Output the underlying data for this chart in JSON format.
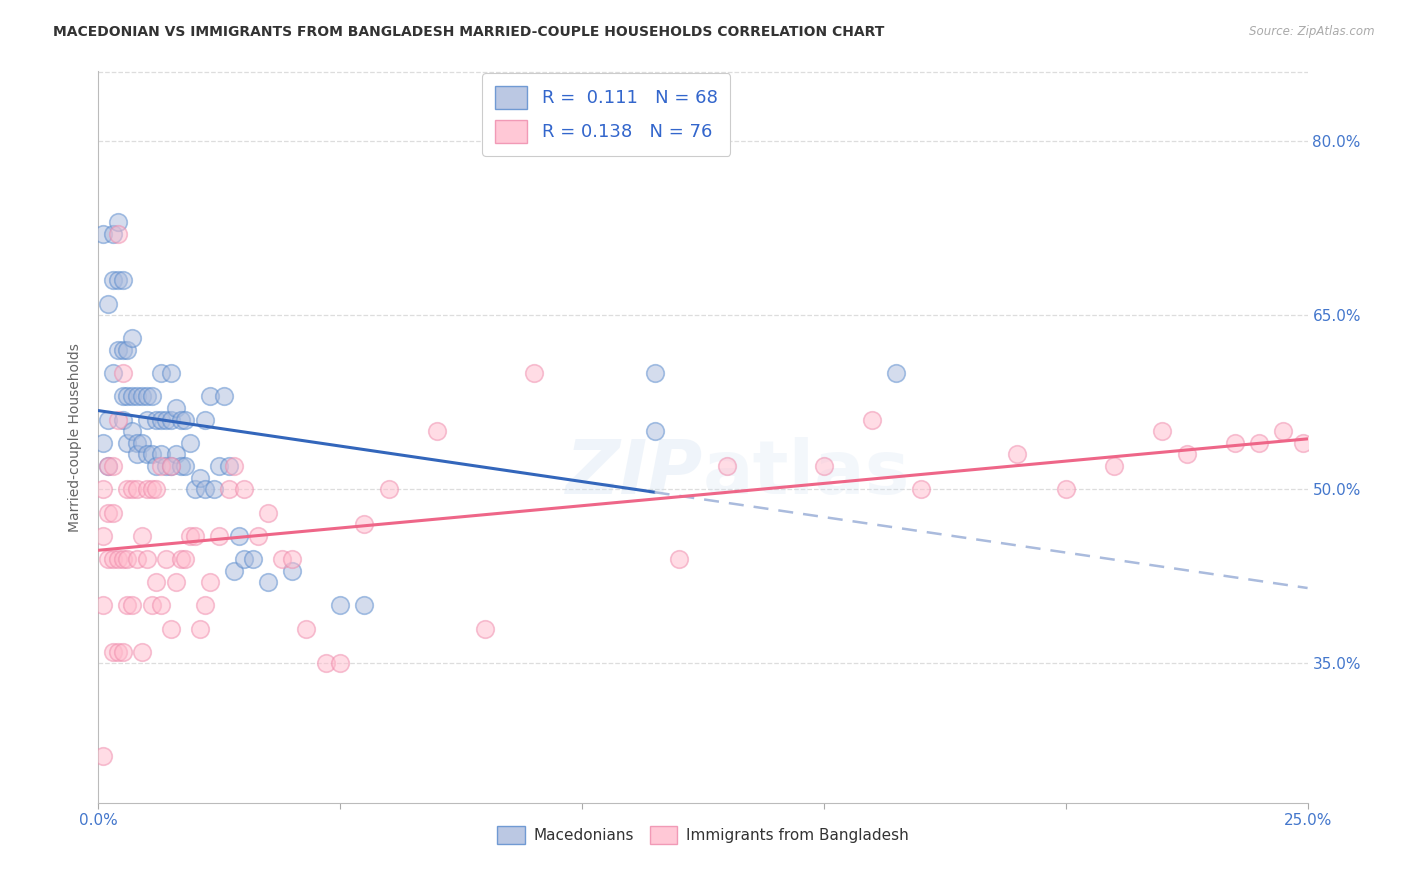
{
  "title": "MACEDONIAN VS IMMIGRANTS FROM BANGLADESH MARRIED-COUPLE HOUSEHOLDS CORRELATION CHART",
  "source": "Source: ZipAtlas.com",
  "ylabel": "Married-couple Households",
  "xlim": [
    0.0,
    0.25
  ],
  "ylim": [
    0.23,
    0.86
  ],
  "xtick_positions": [
    0.0,
    0.05,
    0.1,
    0.15,
    0.2,
    0.25
  ],
  "xtick_labels": [
    "0.0%",
    "",
    "",
    "",
    "",
    "25.0%"
  ],
  "ytick_values": [
    0.8,
    0.65,
    0.5,
    0.35
  ],
  "ytick_labels": [
    "80.0%",
    "65.0%",
    "50.0%",
    "35.0%"
  ],
  "blue_fill": "#AABBDD",
  "blue_edge": "#5588CC",
  "blue_line": "#3366BB",
  "blue_dash_color": "#AABBDD",
  "pink_fill": "#FFBBCC",
  "pink_edge": "#EE88AA",
  "pink_line": "#EE6688",
  "r_blue": "0.111",
  "n_blue": "68",
  "r_pink": "0.138",
  "n_pink": "76",
  "legend_label_blue": "Macedonians",
  "legend_label_pink": "Immigrants from Bangladesh",
  "bg_color": "#FFFFFF",
  "grid_color": "#DDDDDD",
  "blue_line_solid_end": 0.115,
  "blue_x": [
    0.001,
    0.001,
    0.002,
    0.002,
    0.002,
    0.003,
    0.003,
    0.003,
    0.004,
    0.004,
    0.004,
    0.005,
    0.005,
    0.005,
    0.005,
    0.006,
    0.006,
    0.006,
    0.007,
    0.007,
    0.007,
    0.008,
    0.008,
    0.008,
    0.009,
    0.009,
    0.01,
    0.01,
    0.01,
    0.011,
    0.011,
    0.012,
    0.012,
    0.013,
    0.013,
    0.013,
    0.014,
    0.014,
    0.015,
    0.015,
    0.015,
    0.016,
    0.016,
    0.017,
    0.017,
    0.018,
    0.018,
    0.019,
    0.02,
    0.021,
    0.022,
    0.022,
    0.023,
    0.024,
    0.025,
    0.026,
    0.027,
    0.028,
    0.029,
    0.03,
    0.032,
    0.035,
    0.04,
    0.05,
    0.055,
    0.115,
    0.115,
    0.165
  ],
  "blue_y": [
    0.54,
    0.72,
    0.52,
    0.56,
    0.66,
    0.68,
    0.72,
    0.6,
    0.62,
    0.68,
    0.73,
    0.58,
    0.62,
    0.56,
    0.68,
    0.54,
    0.58,
    0.62,
    0.55,
    0.58,
    0.63,
    0.54,
    0.58,
    0.53,
    0.54,
    0.58,
    0.53,
    0.56,
    0.58,
    0.53,
    0.58,
    0.52,
    0.56,
    0.53,
    0.56,
    0.6,
    0.52,
    0.56,
    0.52,
    0.56,
    0.6,
    0.53,
    0.57,
    0.52,
    0.56,
    0.52,
    0.56,
    0.54,
    0.5,
    0.51,
    0.5,
    0.56,
    0.58,
    0.5,
    0.52,
    0.58,
    0.52,
    0.43,
    0.46,
    0.44,
    0.44,
    0.42,
    0.43,
    0.4,
    0.4,
    0.55,
    0.6,
    0.6
  ],
  "pink_x": [
    0.001,
    0.001,
    0.001,
    0.002,
    0.002,
    0.003,
    0.003,
    0.003,
    0.004,
    0.004,
    0.004,
    0.005,
    0.005,
    0.005,
    0.006,
    0.006,
    0.006,
    0.007,
    0.007,
    0.008,
    0.008,
    0.009,
    0.009,
    0.01,
    0.01,
    0.011,
    0.011,
    0.012,
    0.012,
    0.013,
    0.013,
    0.014,
    0.015,
    0.015,
    0.016,
    0.017,
    0.018,
    0.019,
    0.02,
    0.021,
    0.022,
    0.023,
    0.025,
    0.027,
    0.028,
    0.03,
    0.033,
    0.035,
    0.038,
    0.04,
    0.043,
    0.047,
    0.05,
    0.055,
    0.06,
    0.07,
    0.08,
    0.09,
    0.12,
    0.13,
    0.15,
    0.16,
    0.17,
    0.19,
    0.2,
    0.21,
    0.22,
    0.225,
    0.235,
    0.24,
    0.245,
    0.249,
    0.001,
    0.002,
    0.003,
    0.004
  ],
  "pink_y": [
    0.46,
    0.4,
    0.27,
    0.44,
    0.48,
    0.36,
    0.44,
    0.48,
    0.36,
    0.44,
    0.72,
    0.36,
    0.44,
    0.6,
    0.4,
    0.44,
    0.5,
    0.4,
    0.5,
    0.44,
    0.5,
    0.36,
    0.46,
    0.44,
    0.5,
    0.4,
    0.5,
    0.42,
    0.5,
    0.4,
    0.52,
    0.44,
    0.38,
    0.52,
    0.42,
    0.44,
    0.44,
    0.46,
    0.46,
    0.38,
    0.4,
    0.42,
    0.46,
    0.5,
    0.52,
    0.5,
    0.46,
    0.48,
    0.44,
    0.44,
    0.38,
    0.35,
    0.35,
    0.47,
    0.5,
    0.55,
    0.38,
    0.6,
    0.44,
    0.52,
    0.52,
    0.56,
    0.5,
    0.53,
    0.5,
    0.52,
    0.55,
    0.53,
    0.54,
    0.54,
    0.55,
    0.54,
    0.5,
    0.52,
    0.52,
    0.56
  ]
}
